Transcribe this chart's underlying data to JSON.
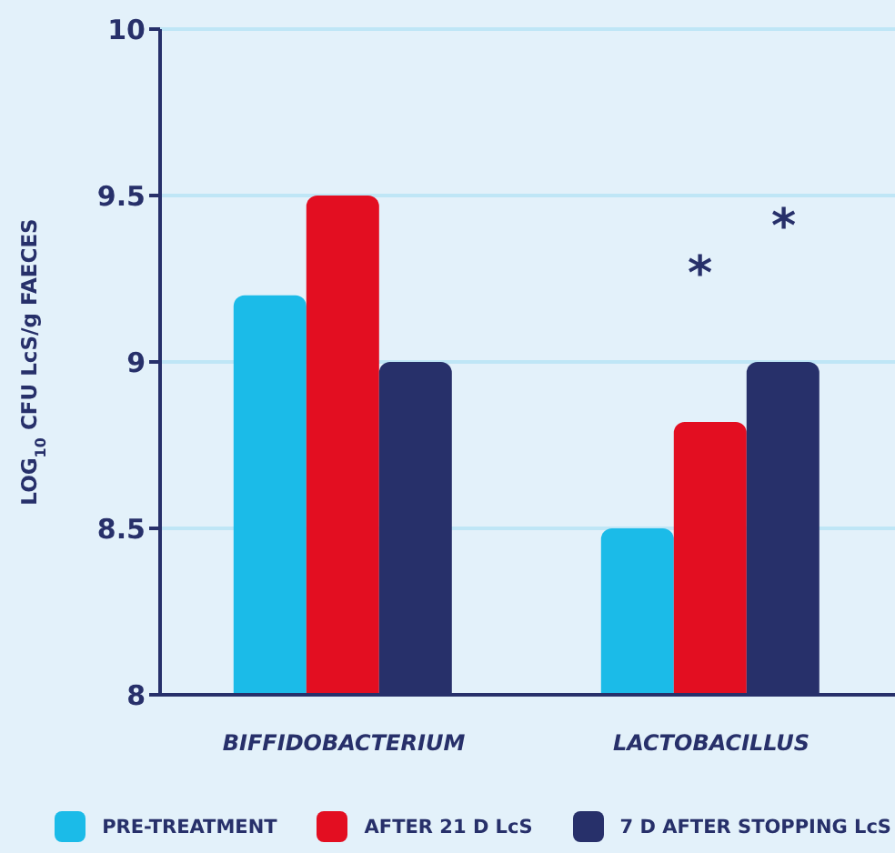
{
  "chart_data": {
    "type": "bar",
    "ylabel": "LOG$_{10}$ CFU LcS/g FAECES",
    "categories": [
      "BIFFIDOBACTERIUM",
      "LACTOBACILLUS"
    ],
    "series": [
      {
        "name": "PRE-TREATMENT",
        "color": "#1bbbe8",
        "values": [
          9.2,
          8.5
        ]
      },
      {
        "name": "AFTER 21 D LcS",
        "color": "#e30e21",
        "values": [
          9.5,
          8.82
        ]
      },
      {
        "name": "7 D AFTER STOPPING LcS",
        "color": "#27306a",
        "values": [
          9.0,
          9.0
        ]
      }
    ],
    "ylim": [
      8,
      10
    ],
    "yticks": [
      8,
      8.5,
      9,
      9.5,
      10
    ],
    "grid": "y",
    "legend": "bottom",
    "annotations": [
      "*",
      "*"
    ]
  }
}
